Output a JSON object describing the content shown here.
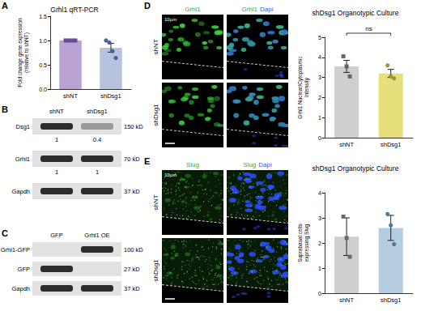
{
  "panel_letters": [
    "A",
    "B",
    "C",
    "D",
    "E"
  ],
  "chart_data": [
    {
      "type": "bar",
      "title": "Grhl1 qRT-PCR",
      "y_label": "Fold change gene expression\n(relative to shNT)",
      "categories": [
        "shNT",
        "shDsg1"
      ],
      "values": [
        1,
        0.85
      ],
      "colors": [
        "#b9a2d3",
        "#b7c2de"
      ],
      "errors": [
        0,
        0.09
      ],
      "points": [
        {
          "color": "#6b4c9a",
          "marker": "square",
          "values": [
            1,
            1,
            1,
            1
          ]
        },
        {
          "color": "#4a5f9e",
          "marker": "circle",
          "values": [
            1.0,
            0.96,
            0.78,
            0.64
          ]
        }
      ],
      "ylim": [
        0,
        1.5
      ],
      "yticks": [
        {
          "value": 0,
          "label": "0.0"
        },
        {
          "value": 0.5,
          "label": "0.5"
        },
        {
          "value": 1,
          "label": "1.0"
        },
        {
          "value": 1.5,
          "label": "1.5"
        }
      ],
      "grid": false
    },
    {
      "type": "bar",
      "title": "shDsg1 Organotypic Culture",
      "y_label": "Grhl1 Nuclear/Cytoplasmic\nintensity",
      "categories": [
        "shNT",
        "shDsg1"
      ],
      "values": [
        3.55,
        3.2
      ],
      "colors": [
        "#cfcfcf",
        "#e6df7c"
      ],
      "errors": [
        0.3,
        0.2
      ],
      "points": [
        {
          "color": "#666666",
          "marker": "square",
          "values": [
            4.05,
            3.55,
            3.05
          ]
        },
        {
          "color": "#9a9440",
          "marker": "circle",
          "values": [
            3.6,
            3.05,
            2.95
          ]
        }
      ],
      "ylim": [
        0,
        5
      ],
      "yticks": [
        0,
        1,
        2,
        3,
        4,
        5
      ],
      "annotations": [
        "ns"
      ],
      "grid": false
    },
    {
      "type": "bar",
      "title": "shDsg1 Organotypic Culture",
      "y_label": "Suprabasal cells\nexpressing Slug",
      "categories": [
        "shNT",
        "shDsg1"
      ],
      "values": [
        2.25,
        2.6
      ],
      "colors": [
        "#cfcfcf",
        "#b5cde0"
      ],
      "errors": [
        0.75,
        0.5
      ],
      "points": [
        {
          "color": "#6b6b6b",
          "marker": "square",
          "values": [
            3.05,
            2.2,
            1.45
          ]
        },
        {
          "color": "#4c7a99",
          "marker": "circle",
          "values": [
            3.15,
            2.7,
            1.95
          ]
        }
      ],
      "ylim": [
        0,
        4
      ],
      "yticks": [
        0,
        1,
        2,
        3,
        4
      ],
      "grid": false
    }
  ],
  "blots": [
    {
      "lanes": [
        "shNT",
        "shDsg1"
      ],
      "rows": [
        {
          "label": "Dsg1",
          "size": "150 kD",
          "bands": [
            true,
            true
          ],
          "quant": [
            1,
            0.4
          ]
        },
        {
          "label": "Grhl1",
          "size": "70 kD",
          "bands": [
            true,
            true
          ],
          "quant": [
            1,
            1
          ]
        },
        {
          "label": "Gapdh",
          "size": "37 kD",
          "bands": [
            true,
            true
          ]
        }
      ]
    },
    {
      "lanes": [
        "GFP",
        "Grhl1 OE"
      ],
      "rows": [
        {
          "label": "Grhl1-GFP",
          "size": "100 kD",
          "bands": [
            false,
            true
          ]
        },
        {
          "label": "GFP",
          "size": "27 kD",
          "bands": [
            true,
            false
          ]
        },
        {
          "label": "Gapdh",
          "size": "37 kD",
          "bands": [
            true,
            true
          ]
        }
      ]
    }
  ],
  "micrographs": [
    {
      "stain": "Grhl1",
      "counterstain": "Dapi",
      "rows": [
        "shNT",
        "shDsg1"
      ],
      "scale_bar": "10μm",
      "pattern": "nuclear"
    },
    {
      "stain": "Slug",
      "counterstain": "Dapi",
      "rows": [
        "shNT",
        "shDsg1"
      ],
      "scale_bar": "10μm",
      "pattern": "cytoplasmic"
    }
  ]
}
